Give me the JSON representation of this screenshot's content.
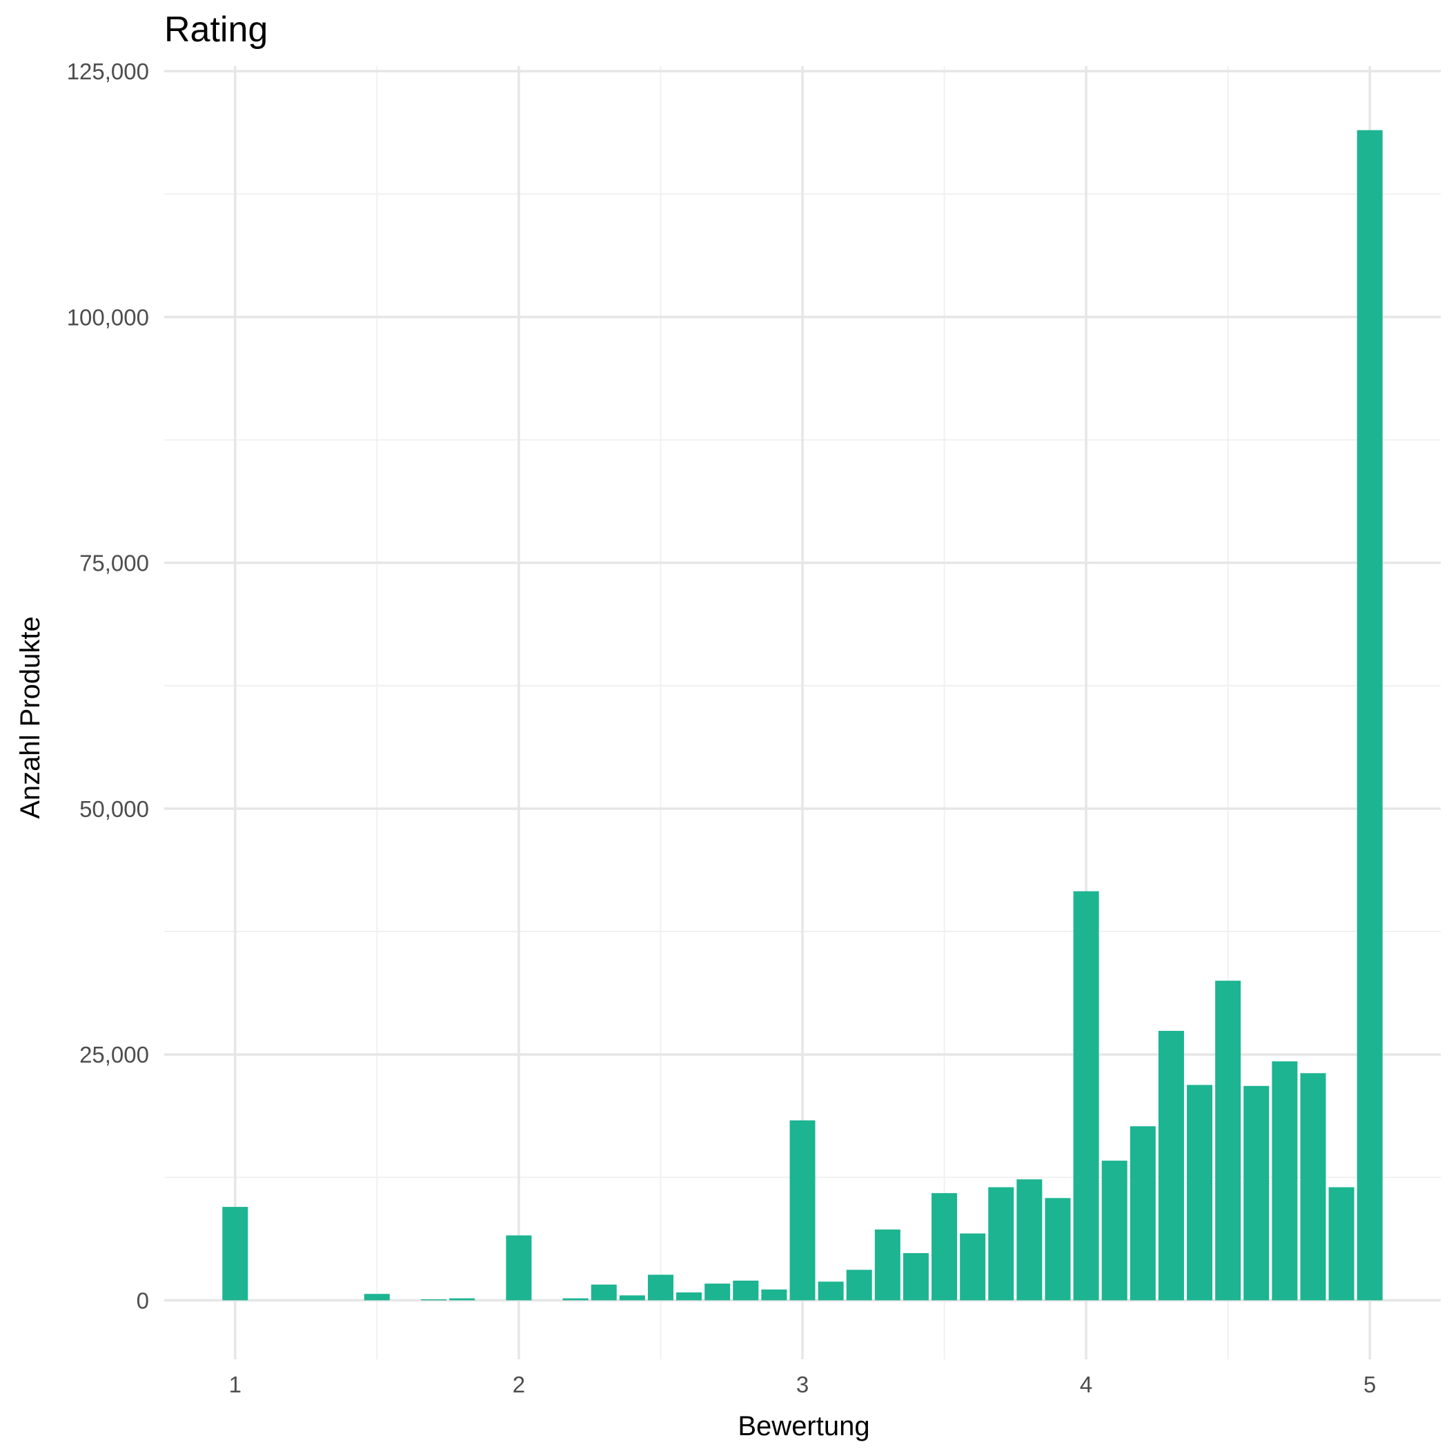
{
  "chart_data": {
    "type": "bar",
    "title": "Rating",
    "xlabel": "Bewertung",
    "ylabel": "Anzahl Produkte",
    "xlim": [
      0.75,
      5.25
    ],
    "ylim": [
      -6000,
      125500
    ],
    "x_ticks": [
      1,
      2,
      3,
      4,
      5
    ],
    "x_tick_labels": [
      "1",
      "2",
      "3",
      "4",
      "5"
    ],
    "x_minor_ticks": [
      1.5,
      2.5,
      3.5,
      4.5
    ],
    "y_ticks": [
      0,
      25000,
      50000,
      75000,
      100000,
      125000
    ],
    "y_tick_labels": [
      "0",
      "25,000",
      "50,000",
      "75,000",
      "100,000",
      "125,000"
    ],
    "y_minor_ticks": [
      12500,
      37500,
      62500,
      87500,
      112500
    ],
    "grid": true,
    "bar_color": "#1cb491",
    "bar_width": 0.09,
    "x": [
      1.0,
      1.5,
      1.7,
      1.8,
      2.0,
      2.2,
      2.3,
      2.4,
      2.5,
      2.6,
      2.7,
      2.8,
      2.9,
      3.0,
      3.1,
      3.2,
      3.3,
      3.4,
      3.5,
      3.6,
      3.7,
      3.8,
      3.9,
      4.0,
      4.1,
      4.2,
      4.3,
      4.4,
      4.5,
      4.6,
      4.7,
      4.8,
      4.9,
      5.0
    ],
    "values": [
      9500,
      650,
      100,
      200,
      6600,
      200,
      1600,
      500,
      2600,
      800,
      1700,
      2000,
      1100,
      18300,
      1900,
      3100,
      7200,
      4800,
      10900,
      6800,
      11500,
      12300,
      10400,
      41600,
      14200,
      17700,
      27400,
      21900,
      32500,
      21800,
      24300,
      23100,
      11500,
      119000
    ]
  }
}
